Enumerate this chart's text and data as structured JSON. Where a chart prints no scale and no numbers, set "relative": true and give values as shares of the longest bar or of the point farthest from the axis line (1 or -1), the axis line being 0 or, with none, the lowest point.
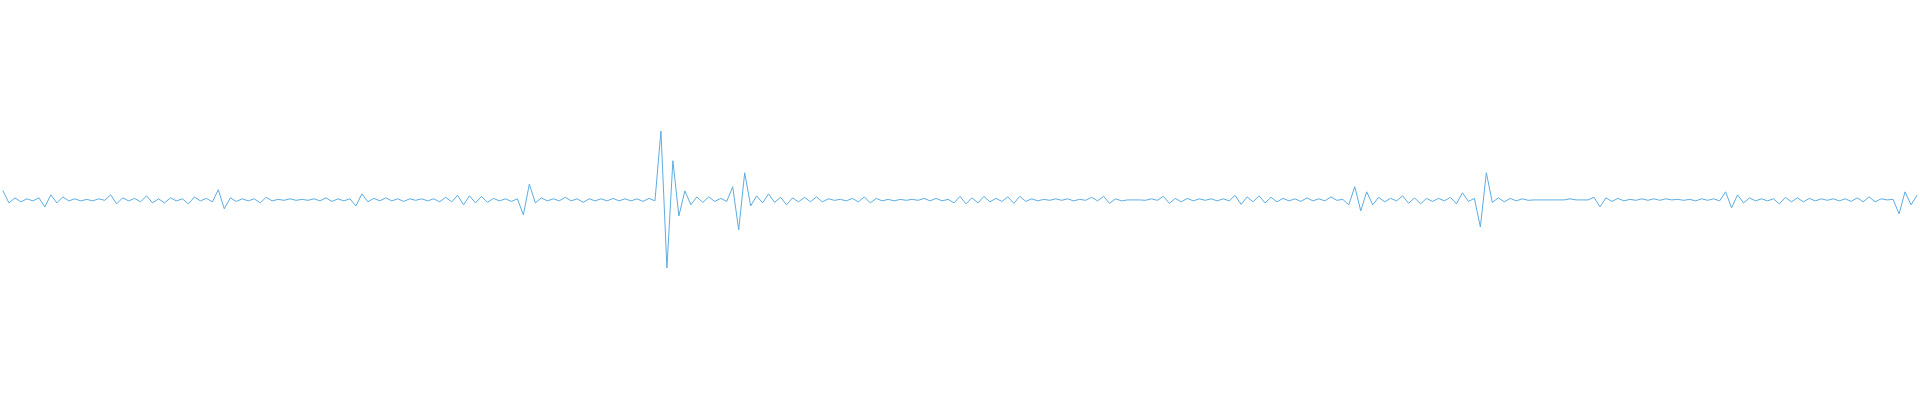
{
  "chart_data": {
    "type": "line",
    "relative": true,
    "color": "#5dade2",
    "categories": [
      null,
      null,
      null,
      null,
      null,
      null,
      null,
      null,
      null,
      null,
      null,
      null,
      null,
      null,
      null,
      null,
      null,
      null,
      null,
      null,
      null,
      null,
      null,
      null,
      null,
      null,
      null,
      null,
      null,
      null,
      null,
      null,
      null,
      null,
      null,
      null,
      null,
      null,
      null,
      null,
      null,
      null,
      null,
      null,
      null,
      null,
      null,
      null,
      null,
      null,
      null,
      null,
      null,
      null,
      null,
      null,
      null,
      null,
      null,
      null,
      null,
      null,
      null,
      null,
      null,
      null,
      null,
      null,
      null,
      null,
      null,
      null,
      null,
      null,
      null,
      null,
      null,
      null,
      null,
      null,
      null,
      null,
      null,
      null,
      null,
      null,
      null,
      null,
      null,
      null,
      null,
      null,
      null,
      null,
      null,
      null,
      null,
      null,
      null,
      null,
      null,
      null,
      null,
      null,
      null,
      null,
      null,
      null,
      null,
      null,
      null,
      null,
      null,
      null,
      null,
      null,
      null,
      null,
      null,
      null,
      null,
      null,
      null,
      null,
      null,
      null,
      null,
      null,
      null,
      null,
      null,
      null,
      null,
      null,
      null,
      null,
      null,
      null,
      null,
      null,
      null,
      null,
      null,
      null,
      null,
      null,
      null,
      null,
      null,
      null,
      null,
      null,
      null,
      null,
      null,
      null,
      null,
      null,
      null,
      null,
      null,
      null,
      null,
      null,
      null,
      null,
      null,
      null,
      null,
      null,
      null,
      null,
      null,
      null,
      null,
      null,
      null,
      null,
      null,
      null,
      null,
      null,
      null,
      null,
      null,
      null,
      null,
      null,
      null,
      null,
      null,
      null,
      null,
      null,
      null,
      null,
      null,
      null,
      null,
      null,
      null,
      null,
      null,
      null,
      null,
      null,
      null,
      null,
      null,
      null,
      null,
      null,
      null,
      null,
      null,
      null,
      null,
      null,
      null,
      null,
      null,
      null,
      null,
      null,
      null,
      null,
      null,
      null,
      null,
      null,
      null,
      null,
      null,
      null,
      null,
      null,
      null,
      null,
      null,
      null,
      null,
      null,
      null,
      null,
      null,
      null,
      null,
      null,
      null,
      null,
      null,
      null,
      null,
      null,
      null,
      null,
      null,
      null,
      null,
      null,
      null,
      null,
      null,
      null,
      null,
      null,
      null,
      null,
      null,
      null,
      null,
      null,
      null,
      null,
      null,
      null,
      null,
      null,
      null,
      null,
      null,
      null,
      null,
      null,
      null,
      null,
      null,
      null,
      null,
      null,
      null,
      null,
      null,
      null,
      null,
      null,
      null,
      null,
      null,
      null,
      null,
      null,
      null,
      null,
      null,
      null,
      null,
      null,
      null,
      null,
      null,
      null,
      null,
      null,
      null,
      null,
      null,
      null,
      null,
      null,
      null
    ],
    "values": [
      0.563,
      0.475,
      0.512,
      0.483,
      0.505,
      0.49,
      0.512,
      0.446,
      0.534,
      0.475,
      0.519,
      0.49,
      0.505,
      0.49,
      0.501,
      0.49,
      0.505,
      0.494,
      0.534,
      0.468,
      0.512,
      0.49,
      0.508,
      0.483,
      0.527,
      0.475,
      0.505,
      0.475,
      0.512,
      0.49,
      0.505,
      0.468,
      0.519,
      0.49,
      0.508,
      0.483,
      0.571,
      0.432,
      0.512,
      0.486,
      0.505,
      0.49,
      0.505,
      0.475,
      0.516,
      0.49,
      0.501,
      0.494,
      0.505,
      0.494,
      0.501,
      0.494,
      0.505,
      0.49,
      0.512,
      0.486,
      0.505,
      0.49,
      0.505,
      0.453,
      0.541,
      0.483,
      0.508,
      0.49,
      0.512,
      0.49,
      0.505,
      0.486,
      0.505,
      0.494,
      0.505,
      0.49,
      0.505,
      0.483,
      0.516,
      0.483,
      0.53,
      0.461,
      0.527,
      0.475,
      0.523,
      0.479,
      0.508,
      0.49,
      0.505,
      0.486,
      0.505,
      0.388,
      0.612,
      0.475,
      0.512,
      0.49,
      0.505,
      0.49,
      0.516,
      0.49,
      0.505,
      0.479,
      0.505,
      0.49,
      0.505,
      0.49,
      0.508,
      0.49,
      0.505,
      0.49,
      0.505,
      0.486,
      0.508,
      0.49,
      1,
      0,
      0.783,
      0.38,
      0.563,
      0.461,
      0.519,
      0.479,
      0.519,
      0.486,
      0.508,
      0.486,
      0.593,
      0.278,
      0.695,
      0.453,
      0.527,
      0.475,
      0.541,
      0.479,
      0.516,
      0.461,
      0.512,
      0.483,
      0.516,
      0.483,
      0.519,
      0.483,
      0.505,
      0.494,
      0.501,
      0.49,
      0.508,
      0.483,
      0.519,
      0.475,
      0.508,
      0.49,
      0.501,
      0.49,
      0.501,
      0.494,
      0.501,
      0.494,
      0.508,
      0.49,
      0.508,
      0.49,
      0.501,
      0.475,
      0.523,
      0.468,
      0.512,
      0.475,
      0.523,
      0.483,
      0.508,
      0.486,
      0.519,
      0.472,
      0.523,
      0.486,
      0.505,
      0.49,
      0.501,
      0.494,
      0.505,
      0.494,
      0.505,
      0.49,
      0.501,
      0.494,
      0.516,
      0.49,
      0.523,
      0.472,
      0.505,
      0.49,
      0.497,
      0.497,
      0.497,
      0.494,
      0.505,
      0.494,
      0.523,
      0.472,
      0.508,
      0.483,
      0.508,
      0.49,
      0.505,
      0.494,
      0.505,
      0.49,
      0.505,
      0.49,
      0.53,
      0.464,
      0.519,
      0.483,
      0.527,
      0.475,
      0.516,
      0.483,
      0.508,
      0.49,
      0.505,
      0.486,
      0.512,
      0.49,
      0.505,
      0.49,
      0.519,
      0.494,
      0.501,
      0.461,
      0.593,
      0.417,
      0.556,
      0.461,
      0.516,
      0.483,
      0.508,
      0.49,
      0.527,
      0.472,
      0.512,
      0.468,
      0.508,
      0.486,
      0.508,
      0.49,
      0.516,
      0.468,
      0.549,
      0.486,
      0.508,
      0.3,
      0.695,
      0.479,
      0.512,
      0.483,
      0.508,
      0.49,
      0.505,
      0.494,
      0.497,
      0.497,
      0.497,
      0.497,
      0.497,
      0.497,
      0.505,
      0.497,
      0.497,
      0.497,
      0.516,
      0.446,
      0.512,
      0.486,
      0.508,
      0.49,
      0.501,
      0.494,
      0.505,
      0.494,
      0.505,
      0.494,
      0.505,
      0.497,
      0.501,
      0.494,
      0.501,
      0.49,
      0.505,
      0.494,
      0.505,
      0.49,
      0.556,
      0.439,
      0.534,
      0.475,
      0.512,
      0.49,
      0.505,
      0.49,
      0.505,
      0.468,
      0.516,
      0.483,
      0.512,
      0.483,
      0.508,
      0.49,
      0.505,
      0.494,
      0.505,
      0.49,
      0.505,
      0.486,
      0.512,
      0.483,
      0.519,
      0.483,
      0.505,
      0.497,
      0.501,
      0.395,
      0.556,
      0.461,
      0.53
    ]
  }
}
